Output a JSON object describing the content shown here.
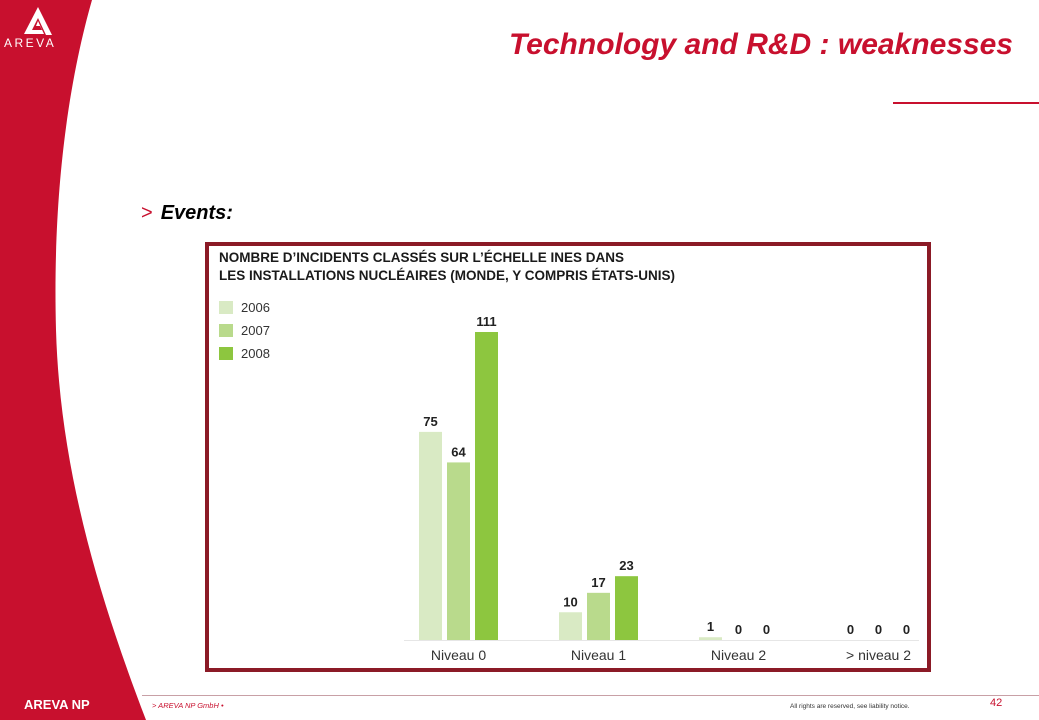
{
  "brand": {
    "logo_text": "AREVA",
    "company_footer": "AREVA NP",
    "accent_color": "#c8102e"
  },
  "slide": {
    "title": "Technology and R&D : weaknesses",
    "bullet_marker": ">",
    "bullet_text": "Events:"
  },
  "chart_data": {
    "type": "bar",
    "title_lines": [
      "NOMBRE D’INCIDENTS CLASSÉS SUR L’ÉCHELLE INES DANS",
      "LES INSTALLATIONS NUCLÉAIRES (MONDE, Y COMPRIS ÉTATS-UNIS)"
    ],
    "categories": [
      "Niveau 0",
      "Niveau 1",
      "Niveau 2",
      "> niveau 2"
    ],
    "series": [
      {
        "name": "2006",
        "color": "#d9eac4",
        "values": [
          75,
          10,
          1,
          0
        ]
      },
      {
        "name": "2007",
        "color": "#b9da8c",
        "values": [
          64,
          17,
          0,
          0
        ]
      },
      {
        "name": "2008",
        "color": "#8dc63f",
        "values": [
          111,
          23,
          0,
          0
        ]
      }
    ],
    "ylim": [
      0,
      111
    ],
    "legend_position": "top-left",
    "grid": false
  },
  "footer": {
    "left_text": "> AREVA NP GmbH •",
    "right_text": "All rights are reserved, see liability notice.",
    "page_number": "42"
  }
}
